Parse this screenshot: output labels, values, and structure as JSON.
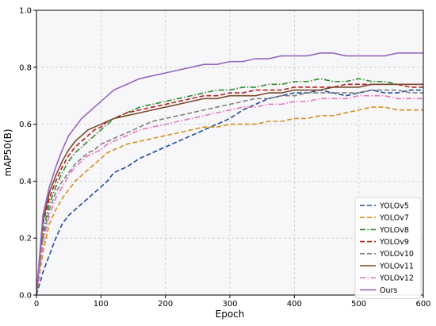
{
  "chart_data": {
    "type": "line",
    "xlabel": "Epoch",
    "ylabel": "mAP50(B)",
    "xlim": [
      0,
      600
    ],
    "ylim": [
      0,
      1.0
    ],
    "xticks": [
      "0",
      "100",
      "200",
      "300",
      "400",
      "500",
      "600"
    ],
    "yticks": [
      "0.0",
      "0.2",
      "0.4",
      "0.6",
      "0.8",
      "1.0"
    ],
    "grid": true,
    "legend_position": "bottom-right",
    "series": [
      {
        "name": "YOLOv5",
        "color": "#1f4e99",
        "dash": "dashed",
        "x": [
          0,
          10,
          20,
          30,
          40,
          50,
          60,
          70,
          80,
          90,
          100,
          110,
          120,
          140,
          160,
          180,
          200,
          220,
          240,
          260,
          280,
          300,
          320,
          340,
          360,
          380,
          400,
          420,
          440,
          460,
          480,
          500,
          520,
          540,
          560,
          580,
          600
        ],
        "y": [
          0.0,
          0.08,
          0.14,
          0.2,
          0.25,
          0.28,
          0.3,
          0.32,
          0.34,
          0.36,
          0.38,
          0.4,
          0.43,
          0.45,
          0.48,
          0.5,
          0.52,
          0.54,
          0.56,
          0.58,
          0.6,
          0.62,
          0.65,
          0.67,
          0.69,
          0.7,
          0.71,
          0.71,
          0.72,
          0.71,
          0.7,
          0.71,
          0.72,
          0.71,
          0.71,
          0.72,
          0.72
        ]
      },
      {
        "name": "YOLOv7",
        "color": "#d4901b",
        "dash": "dashed",
        "x": [
          0,
          10,
          20,
          30,
          40,
          50,
          60,
          70,
          80,
          90,
          100,
          110,
          120,
          140,
          160,
          180,
          200,
          220,
          240,
          260,
          280,
          300,
          320,
          340,
          360,
          380,
          400,
          420,
          440,
          460,
          480,
          500,
          520,
          540,
          560,
          580,
          600
        ],
        "y": [
          0.0,
          0.15,
          0.25,
          0.3,
          0.34,
          0.37,
          0.4,
          0.42,
          0.44,
          0.46,
          0.48,
          0.5,
          0.51,
          0.53,
          0.54,
          0.55,
          0.56,
          0.57,
          0.58,
          0.59,
          0.59,
          0.6,
          0.6,
          0.6,
          0.61,
          0.61,
          0.62,
          0.62,
          0.63,
          0.63,
          0.64,
          0.65,
          0.66,
          0.66,
          0.65,
          0.65,
          0.65
        ]
      },
      {
        "name": "YOLOv8",
        "color": "#2e8b2e",
        "dash": "dashdot",
        "x": [
          0,
          10,
          20,
          30,
          40,
          50,
          60,
          70,
          80,
          90,
          100,
          110,
          120,
          140,
          160,
          180,
          200,
          220,
          240,
          260,
          280,
          300,
          320,
          340,
          360,
          380,
          400,
          420,
          440,
          460,
          480,
          500,
          520,
          540,
          560,
          580,
          600
        ],
        "y": [
          0.0,
          0.22,
          0.32,
          0.38,
          0.43,
          0.47,
          0.5,
          0.52,
          0.54,
          0.56,
          0.58,
          0.6,
          0.62,
          0.64,
          0.66,
          0.67,
          0.68,
          0.69,
          0.7,
          0.71,
          0.72,
          0.72,
          0.73,
          0.73,
          0.74,
          0.74,
          0.75,
          0.75,
          0.76,
          0.75,
          0.75,
          0.76,
          0.75,
          0.75,
          0.74,
          0.74,
          0.74
        ]
      },
      {
        "name": "YOLOv9",
        "color": "#b22222",
        "dash": "dashed",
        "x": [
          0,
          10,
          20,
          30,
          40,
          50,
          60,
          70,
          80,
          90,
          100,
          110,
          120,
          140,
          160,
          180,
          200,
          220,
          240,
          260,
          280,
          300,
          320,
          340,
          360,
          380,
          400,
          420,
          440,
          460,
          480,
          500,
          520,
          540,
          560,
          580,
          600
        ],
        "y": [
          0.0,
          0.25,
          0.34,
          0.4,
          0.45,
          0.49,
          0.52,
          0.54,
          0.56,
          0.58,
          0.59,
          0.61,
          0.62,
          0.64,
          0.65,
          0.66,
          0.67,
          0.68,
          0.69,
          0.7,
          0.7,
          0.71,
          0.71,
          0.72,
          0.72,
          0.72,
          0.73,
          0.73,
          0.73,
          0.73,
          0.74,
          0.74,
          0.74,
          0.74,
          0.74,
          0.73,
          0.73
        ]
      },
      {
        "name": "YOLOv10",
        "color": "#7f7f7f",
        "dash": "dashed",
        "x": [
          0,
          10,
          20,
          30,
          40,
          50,
          60,
          70,
          80,
          90,
          100,
          110,
          120,
          140,
          160,
          180,
          200,
          220,
          240,
          260,
          280,
          300,
          320,
          340,
          360,
          380,
          400,
          420,
          440,
          460,
          480,
          500,
          520,
          540,
          560,
          580,
          600
        ],
        "y": [
          0.0,
          0.2,
          0.3,
          0.36,
          0.4,
          0.43,
          0.46,
          0.48,
          0.5,
          0.51,
          0.53,
          0.54,
          0.55,
          0.57,
          0.59,
          0.61,
          0.62,
          0.63,
          0.64,
          0.65,
          0.66,
          0.67,
          0.68,
          0.69,
          0.69,
          0.7,
          0.7,
          0.71,
          0.71,
          0.71,
          0.71,
          0.71,
          0.72,
          0.72,
          0.72,
          0.71,
          0.71
        ]
      },
      {
        "name": "YOLOv11",
        "color": "#7b4a2d",
        "dash": "solid",
        "x": [
          0,
          10,
          20,
          30,
          40,
          50,
          60,
          70,
          80,
          90,
          100,
          110,
          120,
          140,
          160,
          180,
          200,
          220,
          240,
          260,
          280,
          300,
          320,
          340,
          360,
          380,
          400,
          420,
          440,
          460,
          480,
          500,
          520,
          540,
          560,
          580,
          600
        ],
        "y": [
          0.0,
          0.26,
          0.36,
          0.42,
          0.47,
          0.51,
          0.54,
          0.56,
          0.58,
          0.59,
          0.6,
          0.61,
          0.62,
          0.63,
          0.64,
          0.65,
          0.66,
          0.67,
          0.68,
          0.69,
          0.69,
          0.7,
          0.7,
          0.7,
          0.71,
          0.71,
          0.72,
          0.72,
          0.72,
          0.73,
          0.73,
          0.73,
          0.74,
          0.74,
          0.74,
          0.74,
          0.74
        ]
      },
      {
        "name": "YOLOv12",
        "color": "#e377c2",
        "dash": "dashdot",
        "x": [
          0,
          10,
          20,
          30,
          40,
          50,
          60,
          70,
          80,
          90,
          100,
          110,
          120,
          140,
          160,
          180,
          200,
          220,
          240,
          260,
          280,
          300,
          320,
          340,
          360,
          380,
          400,
          420,
          440,
          460,
          480,
          500,
          520,
          540,
          560,
          580,
          600
        ],
        "y": [
          0.0,
          0.18,
          0.28,
          0.34,
          0.38,
          0.42,
          0.45,
          0.47,
          0.49,
          0.5,
          0.51,
          0.53,
          0.54,
          0.56,
          0.58,
          0.59,
          0.6,
          0.61,
          0.62,
          0.63,
          0.64,
          0.65,
          0.66,
          0.66,
          0.67,
          0.67,
          0.68,
          0.68,
          0.69,
          0.69,
          0.69,
          0.7,
          0.7,
          0.7,
          0.69,
          0.69,
          0.69
        ]
      },
      {
        "name": "Ours",
        "color": "#9467bd",
        "dash": "solid",
        "x": [
          0,
          10,
          20,
          30,
          40,
          50,
          60,
          70,
          80,
          90,
          100,
          110,
          120,
          140,
          160,
          180,
          200,
          220,
          240,
          260,
          280,
          300,
          320,
          340,
          360,
          380,
          400,
          420,
          440,
          460,
          480,
          500,
          520,
          540,
          560,
          580,
          600
        ],
        "y": [
          0.0,
          0.28,
          0.38,
          0.45,
          0.51,
          0.56,
          0.59,
          0.62,
          0.64,
          0.66,
          0.68,
          0.7,
          0.72,
          0.74,
          0.76,
          0.77,
          0.78,
          0.79,
          0.8,
          0.81,
          0.81,
          0.82,
          0.82,
          0.83,
          0.83,
          0.84,
          0.84,
          0.84,
          0.85,
          0.85,
          0.84,
          0.84,
          0.84,
          0.84,
          0.85,
          0.85,
          0.85
        ]
      }
    ]
  }
}
